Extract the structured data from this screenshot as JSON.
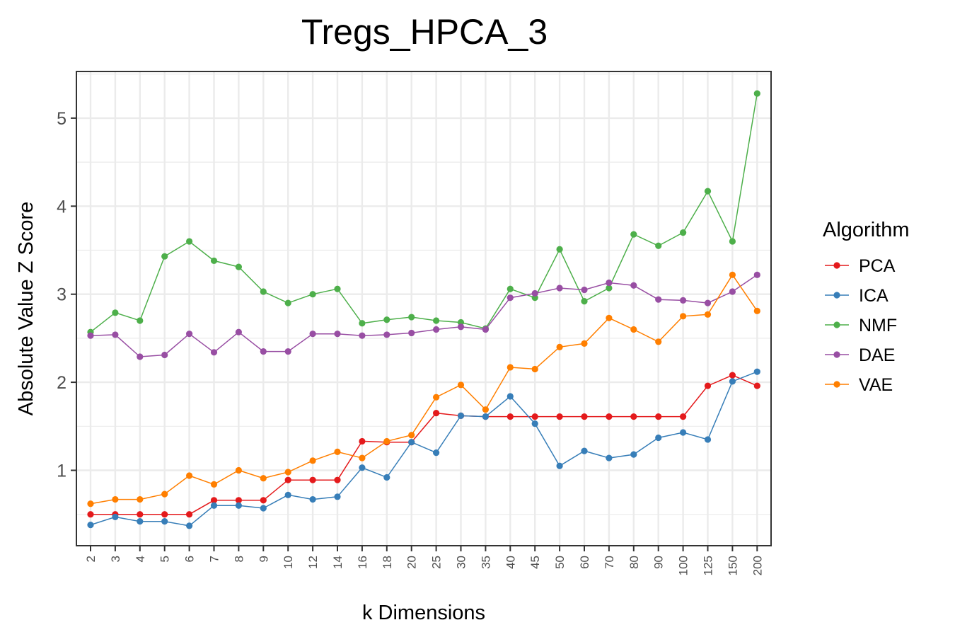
{
  "chart_data": {
    "type": "line",
    "title": "Tregs_HPCA_3",
    "xlabel": "k Dimensions",
    "ylabel": "Absolute Value Z Score",
    "categories": [
      "2",
      "3",
      "4",
      "5",
      "6",
      "7",
      "8",
      "9",
      "10",
      "12",
      "14",
      "16",
      "18",
      "20",
      "25",
      "30",
      "35",
      "40",
      "45",
      "50",
      "60",
      "70",
      "80",
      "90",
      "100",
      "125",
      "150",
      "200"
    ],
    "yticks": [
      "1",
      "2",
      "3",
      "4",
      "5"
    ],
    "ylim": [
      0.2,
      5.5
    ],
    "grid": true,
    "legend_title": "Algorithm",
    "legend_position": "right",
    "series": [
      {
        "name": "PCA",
        "color": "#e41a1c",
        "values": [
          0.5,
          0.5,
          0.5,
          0.5,
          0.5,
          0.66,
          0.66,
          0.66,
          0.89,
          0.89,
          0.89,
          1.33,
          1.32,
          1.32,
          1.65,
          1.62,
          1.61,
          1.61,
          1.61,
          1.61,
          1.61,
          1.61,
          1.61,
          1.61,
          1.61,
          1.96,
          2.08,
          1.96
        ]
      },
      {
        "name": "ICA",
        "color": "#377eb8",
        "values": [
          0.38,
          0.47,
          0.42,
          0.42,
          0.37,
          0.6,
          0.6,
          0.57,
          0.72,
          0.67,
          0.7,
          1.03,
          0.92,
          1.32,
          1.2,
          1.62,
          1.61,
          1.84,
          1.53,
          1.05,
          1.22,
          1.14,
          1.18,
          1.37,
          1.43,
          1.35,
          2.01,
          2.12
        ]
      },
      {
        "name": "NMF",
        "color": "#4daf4a",
        "values": [
          2.57,
          2.79,
          2.7,
          3.43,
          3.6,
          3.38,
          3.31,
          3.03,
          2.9,
          3.0,
          3.06,
          2.67,
          2.71,
          2.74,
          2.7,
          2.68,
          2.61,
          3.06,
          2.96,
          3.51,
          2.92,
          3.07,
          3.68,
          3.55,
          3.7,
          4.17,
          3.6,
          5.28
        ]
      },
      {
        "name": "DAE",
        "color": "#984ea3",
        "values": [
          2.53,
          2.54,
          2.29,
          2.31,
          2.55,
          2.34,
          2.57,
          2.35,
          2.35,
          2.55,
          2.55,
          2.53,
          2.54,
          2.56,
          2.6,
          2.63,
          2.6,
          2.96,
          3.01,
          3.07,
          3.05,
          3.13,
          3.1,
          2.94,
          2.93,
          2.9,
          3.03,
          3.22
        ]
      },
      {
        "name": "VAE",
        "color": "#ff7f00",
        "values": [
          0.62,
          0.67,
          0.67,
          0.73,
          0.94,
          0.84,
          1.0,
          0.91,
          0.98,
          1.11,
          1.21,
          1.14,
          1.33,
          1.4,
          1.83,
          1.97,
          1.69,
          2.17,
          2.15,
          2.4,
          2.44,
          2.73,
          2.6,
          2.46,
          2.75,
          2.77,
          3.22,
          2.81
        ]
      }
    ]
  }
}
